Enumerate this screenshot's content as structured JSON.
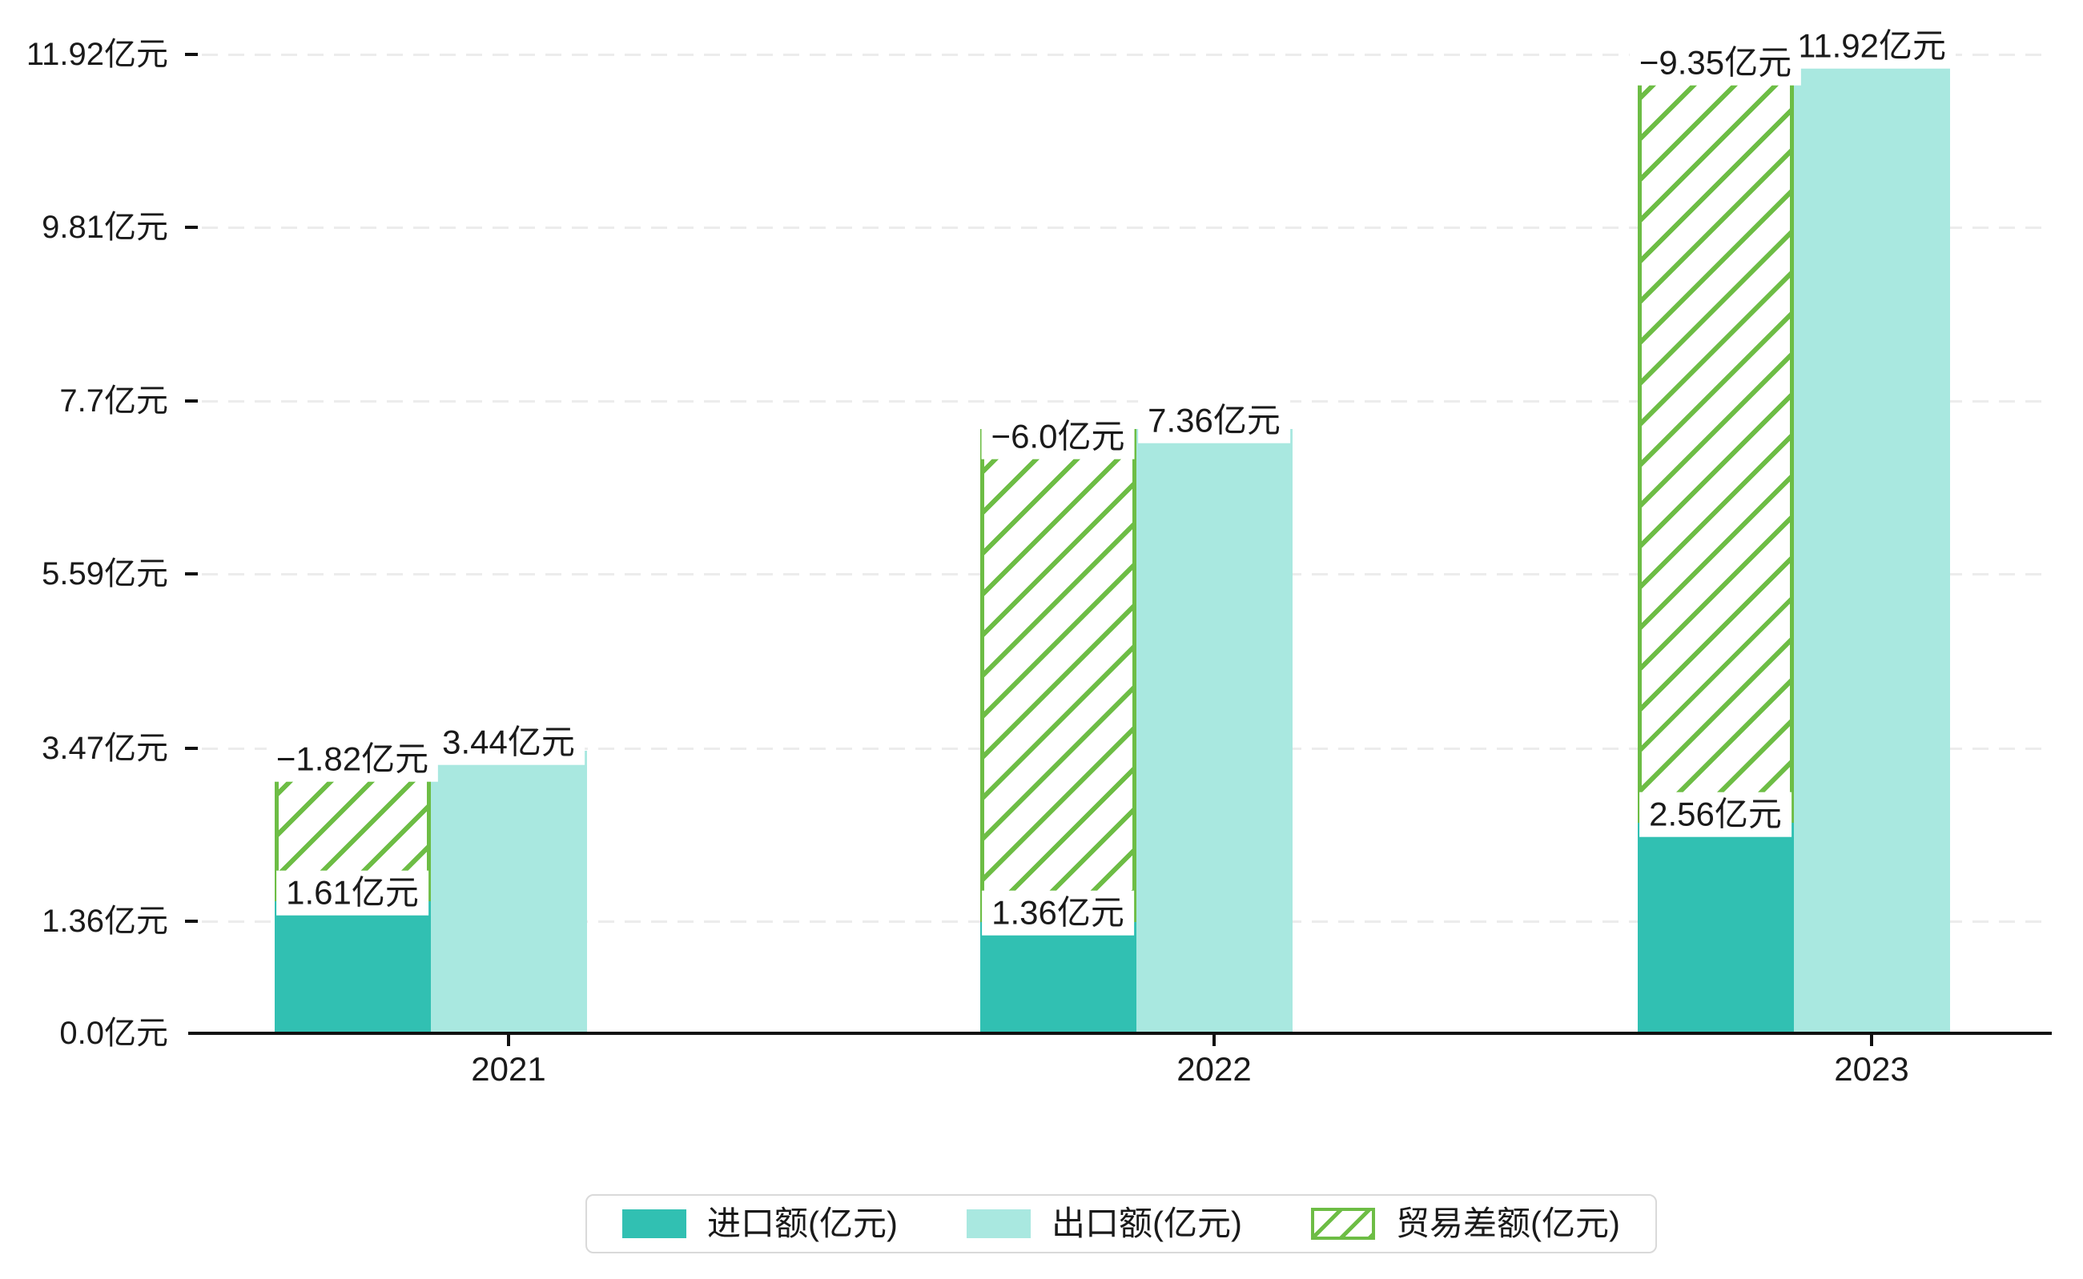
{
  "chart_data": {
    "type": "bar",
    "title": "",
    "unit": "亿元",
    "categories": [
      "2021",
      "2022",
      "2023"
    ],
    "series": [
      {
        "name": "进口额(亿元)",
        "role": "import",
        "values": [
          1.61,
          1.36,
          2.56
        ],
        "labels": [
          "1.61亿元",
          "1.36亿元",
          "2.56亿元"
        ],
        "color": "#31c0b2"
      },
      {
        "name": "出口额(亿元)",
        "role": "export",
        "values": [
          3.44,
          7.36,
          11.92
        ],
        "labels": [
          "3.44亿元",
          "7.36亿元",
          "11.92亿元"
        ],
        "color": "#a9e8e0"
      },
      {
        "name": "贸易差额(亿元)",
        "role": "trade-balance",
        "style": "hatched-floating-bar-from-import-top-to-export-top",
        "values": [
          -1.82,
          -6.0,
          -9.35
        ],
        "labels": [
          "−1.82亿元",
          "−6.0亿元",
          "−9.35亿元"
        ],
        "color": "#6dbd45"
      }
    ],
    "y_axis": {
      "range": [
        0,
        11.92
      ],
      "grid": "dashed",
      "ticks": [
        {
          "value": 0,
          "label": "0.0亿元"
        },
        {
          "value": 1.36,
          "label": "1.36亿元"
        },
        {
          "value": 3.47,
          "label": "3.47亿元"
        },
        {
          "value": 5.59,
          "label": "5.59亿元"
        },
        {
          "value": 7.7,
          "label": "7.7亿元"
        },
        {
          "value": 9.81,
          "label": "9.81亿元"
        },
        {
          "value": 11.92,
          "label": "11.92亿元"
        }
      ]
    },
    "legend": {
      "position": "bottom",
      "items": [
        "进口额(亿元)",
        "出口额(亿元)",
        "贸易差额(亿元)"
      ]
    }
  },
  "colors": {
    "import_bar": "#31c0b2",
    "export_bar": "#a9e8e0",
    "balance_hatch": "#6dbd45",
    "gridline": "#ececec",
    "axis": "#111111",
    "label_text": "#1a1a1a",
    "legend_border": "#d9d9d9",
    "background": "#ffffff"
  }
}
